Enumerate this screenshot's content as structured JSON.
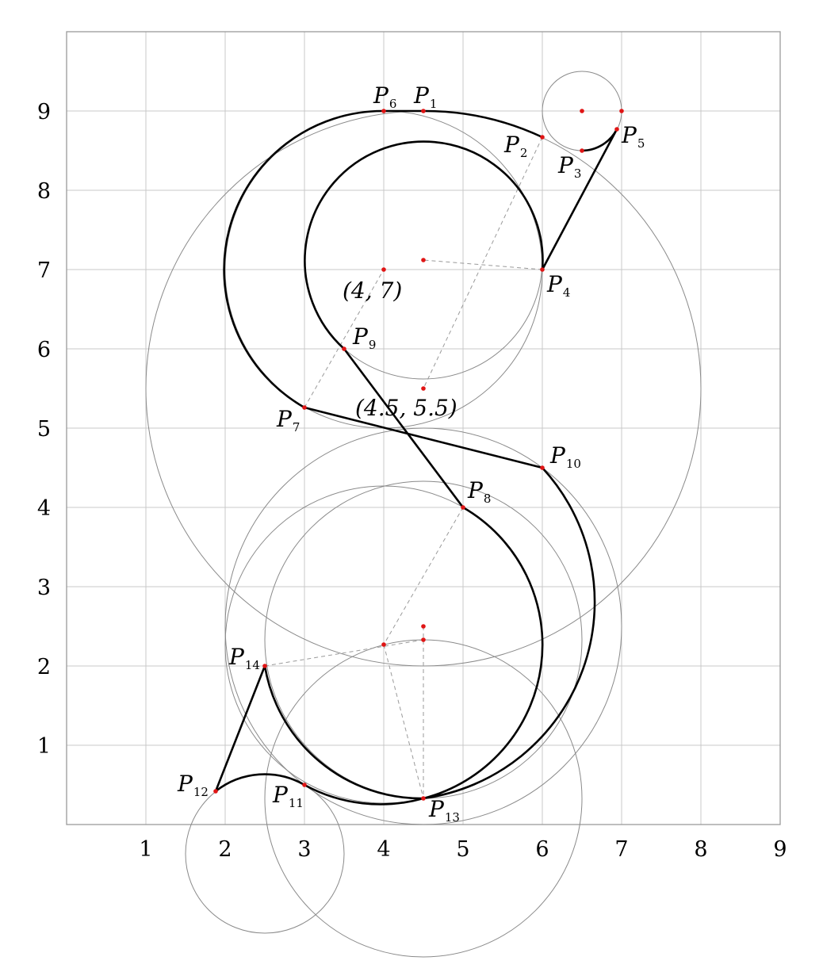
{
  "colors": {
    "grid": "#c8c8c8",
    "frame": "#9a9a9a",
    "construction_circle": "#8a8a8a",
    "guide_line": "#9a9a9a",
    "curve": "#000000",
    "point": "#e01515"
  },
  "axes": {
    "x_ticks": [
      "1",
      "2",
      "3",
      "4",
      "5",
      "6",
      "7",
      "8",
      "9"
    ],
    "y_ticks": [
      "1",
      "2",
      "3",
      "4",
      "5",
      "6",
      "7",
      "8",
      "9"
    ]
  },
  "points": [
    {
      "name": "P1",
      "letter": "P",
      "sub": "1",
      "x": 4.5,
      "y": 9.0
    },
    {
      "name": "P2",
      "letter": "P",
      "sub": "2",
      "x": 6.0,
      "y": 8.67
    },
    {
      "name": "P3",
      "letter": "P",
      "sub": "3",
      "x": 6.5,
      "y": 8.5
    },
    {
      "name": "P4",
      "letter": "P",
      "sub": "4",
      "x": 6.0,
      "y": 7.0
    },
    {
      "name": "P5",
      "letter": "P",
      "sub": "5",
      "x": 6.94,
      "y": 8.77
    },
    {
      "name": "P6",
      "letter": "P",
      "sub": "6",
      "x": 4.0,
      "y": 9.0
    },
    {
      "name": "P7",
      "letter": "P",
      "sub": "7",
      "x": 3.0,
      "y": 5.26
    },
    {
      "name": "P8",
      "letter": "P",
      "sub": "8",
      "x": 5.0,
      "y": 4.0
    },
    {
      "name": "P9",
      "letter": "P",
      "sub": "9",
      "x": 3.5,
      "y": 6.0
    },
    {
      "name": "P10",
      "letter": "P",
      "sub": "10",
      "x": 6.0,
      "y": 4.5
    },
    {
      "name": "P11",
      "letter": "P",
      "sub": "11",
      "x": 3.0,
      "y": 0.5
    },
    {
      "name": "P12",
      "letter": "P",
      "sub": "12",
      "x": 1.88,
      "y": 0.42
    },
    {
      "name": "P13",
      "letter": "P",
      "sub": "13",
      "x": 4.5,
      "y": 0.33
    },
    {
      "name": "P14",
      "letter": "P",
      "sub": "14",
      "x": 2.5,
      "y": 2.0
    }
  ],
  "extra_points": [
    {
      "x": 4.0,
      "y": 7.0
    },
    {
      "x": 4.5,
      "y": 7.12
    },
    {
      "x": 4.5,
      "y": 5.5
    },
    {
      "x": 6.5,
      "y": 9.0
    },
    {
      "x": 7.0,
      "y": 9.0
    },
    {
      "x": 4.0,
      "y": 2.27
    },
    {
      "x": 4.5,
      "y": 2.33
    },
    {
      "x": 4.5,
      "y": 2.5
    }
  ],
  "coordinate_labels": [
    {
      "text": "(4, 7)"
    },
    {
      "text": "(4.5, 5.5)"
    }
  ],
  "construction_circles": [
    {
      "cx": 4.5,
      "cy": 5.5,
      "r": 3.5
    },
    {
      "cx": 4.5,
      "cy": 7.12,
      "r": 1.5
    },
    {
      "cx": 4.0,
      "cy": 7.0,
      "r": 2.0
    },
    {
      "cx": 6.5,
      "cy": 9.0,
      "r": 0.5
    },
    {
      "cx": 4.5,
      "cy": 2.33,
      "r": 2.0
    },
    {
      "cx": 4.5,
      "cy": 2.5,
      "r": 2.5
    },
    {
      "cx": 4.0,
      "cy": 2.27,
      "r": 2.0
    },
    {
      "cx": 4.5,
      "cy": 0.33,
      "r": 2.0
    },
    {
      "cx": 2.5,
      "cy": -0.37,
      "r": 1.0
    }
  ]
}
